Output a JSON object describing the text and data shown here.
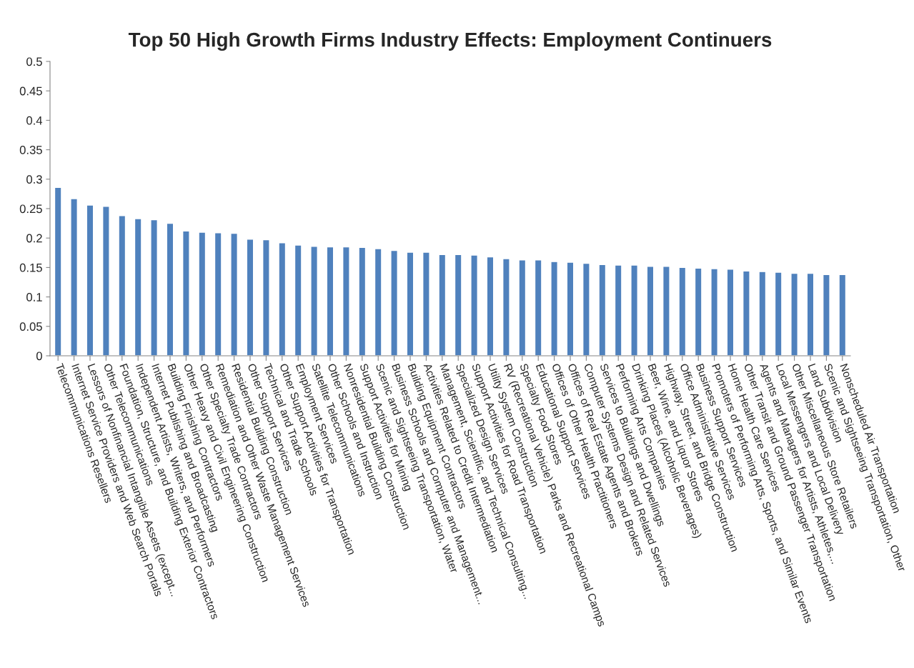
{
  "chart_data": {
    "type": "bar",
    "title": "Top 50 High Growth Firms Industry Effects: Employment Continuers",
    "categories": [
      "Telecommunications Resellers",
      "Internet Service Providers and Web Search Portals",
      "Lessors of Nonfinancial Intangible Assets (except...",
      "Other Telecommunications",
      "Foundation, Structure, and Building Exterior Contractors",
      "Independent Artists, Writers, and Performers",
      "Internet Publishing and Broadcasting",
      "Building Finishing Contractors",
      "Other Heavy and Civil Engineering Construction",
      "Other Specialty Trade Contractors",
      "Remediation and Other Waste Management Services",
      "Residential Building Construction",
      "Other Support Services",
      "Technical and Trade Schools",
      "Other Support Activities for Transportation",
      "Employment Services",
      "Satellite Telecommunications",
      "Other Schools and Instruction",
      "Nonresidential Building Construction",
      "Support Activities for Mining",
      "Scenic and Sightseeing Transportation, Water",
      "Business Schools and Computer and Management...",
      "Building Equipment Contractors",
      "Activities Related to Credit Intermediation",
      "Management, Scientific, and Technical Consulting...",
      "Specialized Design Services",
      "Support Activities for Road Transportation",
      "Utility System Construction",
      "RV (Recreational Vehicle) Parks and Recreational Camps",
      "Specialty Food Stores",
      "Educational Support Services",
      "Offices of Other Health Practitioners",
      "Offices of Real Estate Agents and Brokers",
      "Computer Systems Design and Related Services",
      "Services to Buildings and Dwellings",
      "Performing Arts Companies",
      "Drinking Places (Alcoholic Beverages)",
      "Beer, Wine, and Liquor Stores",
      "Highway, Street, and Bridge Construction",
      "Office Administrative Services",
      "Business Support Services",
      "Promoters of Performing Arts, Sports, and Similar Events",
      "Home Health Care Services",
      "Other Transit and Ground Passenger Transportation",
      "Agents and Managers for Artists, Athletes,...",
      "Local Messengers and Local Delivery",
      "Other Miscellaneous Store Retailers",
      "Land Subdivision",
      "Scenic and Sightseeing Transportation, Other",
      "Nonscheduled Air Transportation"
    ],
    "values": [
      0.286,
      0.267,
      0.256,
      0.254,
      0.238,
      0.233,
      0.231,
      0.225,
      0.212,
      0.21,
      0.209,
      0.208,
      0.198,
      0.197,
      0.192,
      0.188,
      0.186,
      0.185,
      0.185,
      0.184,
      0.182,
      0.179,
      0.176,
      0.176,
      0.172,
      0.172,
      0.171,
      0.168,
      0.165,
      0.163,
      0.163,
      0.16,
      0.159,
      0.157,
      0.155,
      0.154,
      0.154,
      0.152,
      0.152,
      0.15,
      0.149,
      0.148,
      0.147,
      0.144,
      0.143,
      0.142,
      0.14,
      0.14,
      0.138,
      0.138
    ],
    "color": "#4f81bd",
    "ylim": [
      0,
      0.5
    ],
    "yticks": [
      0,
      0.05,
      0.1,
      0.15,
      0.2,
      0.25,
      0.3,
      0.35,
      0.4,
      0.45,
      0.5
    ],
    "grid": false
  }
}
